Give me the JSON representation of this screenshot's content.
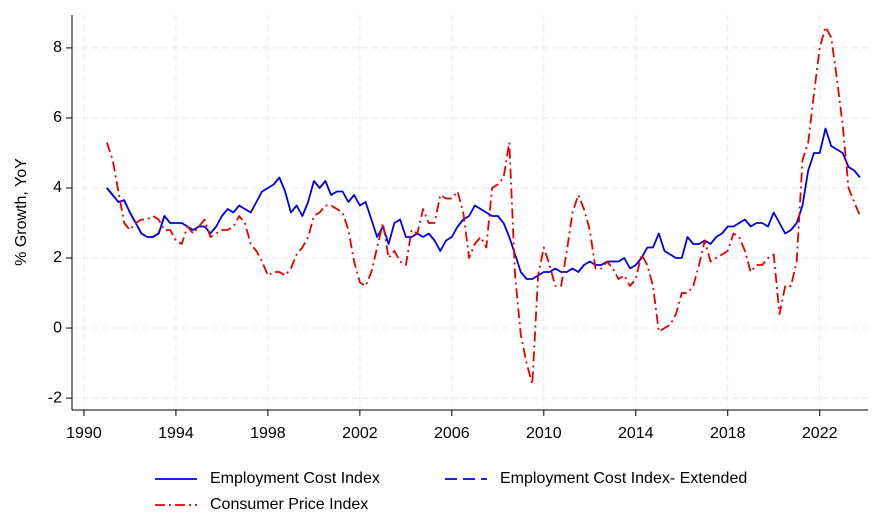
{
  "chart_data": {
    "type": "line",
    "y_label": "% Growth, YoY",
    "x": [
      1991,
      1991.25,
      1991.5,
      1991.75,
      1992,
      1992.25,
      1992.5,
      1992.75,
      1993,
      1993.25,
      1993.5,
      1993.75,
      1994,
      1994.25,
      1994.5,
      1994.75,
      1995,
      1995.25,
      1995.5,
      1995.75,
      1996,
      1996.25,
      1996.5,
      1996.75,
      1997,
      1997.25,
      1997.5,
      1997.75,
      1998,
      1998.25,
      1998.5,
      1998.75,
      1999,
      1999.25,
      1999.5,
      1999.75,
      2000,
      2000.25,
      2000.5,
      2000.75,
      2001,
      2001.25,
      2001.5,
      2001.75,
      2002,
      2002.25,
      2002.5,
      2002.75,
      2003,
      2003.25,
      2003.5,
      2003.75,
      2004,
      2004.25,
      2004.5,
      2004.75,
      2005,
      2005.25,
      2005.5,
      2005.75,
      2006,
      2006.25,
      2006.5,
      2006.75,
      2007,
      2007.25,
      2007.5,
      2007.75,
      2008,
      2008.25,
      2008.5,
      2008.75,
      2009,
      2009.25,
      2009.5,
      2009.75,
      2010,
      2010.25,
      2010.5,
      2010.75,
      2011,
      2011.25,
      2011.5,
      2011.75,
      2012,
      2012.25,
      2012.5,
      2012.75,
      2013,
      2013.25,
      2013.5,
      2013.75,
      2014,
      2014.25,
      2014.5,
      2014.75,
      2015,
      2015.25,
      2015.5,
      2015.75,
      2016,
      2016.25,
      2016.5,
      2016.75,
      2017,
      2017.25,
      2017.5,
      2017.75,
      2018,
      2018.25,
      2018.5,
      2018.75,
      2019,
      2019.25,
      2019.5,
      2019.75,
      2020,
      2020.25,
      2020.5,
      2020.75,
      2021,
      2021.25,
      2021.5,
      2021.75,
      2022,
      2022.25,
      2022.5,
      2022.75,
      2023,
      2023.25,
      2023.5,
      2023.75
    ],
    "series": [
      {
        "name": "Employment Cost Index",
        "color": "#0000e6",
        "dash": "none",
        "values": [
          4.0,
          3.8,
          3.6,
          3.65,
          3.3,
          3.0,
          2.7,
          2.6,
          2.6,
          2.7,
          3.2,
          3.0,
          3.0,
          3.0,
          2.9,
          2.8,
          2.9,
          2.9,
          2.7,
          2.9,
          3.2,
          3.4,
          3.3,
          3.5,
          3.4,
          3.3,
          3.6,
          3.9,
          4.0,
          4.1,
          4.3,
          3.9,
          3.3,
          3.5,
          3.2,
          3.6,
          4.2,
          4.0,
          4.2,
          3.8,
          3.9,
          3.9,
          3.6,
          3.8,
          3.5,
          3.6,
          3.1,
          2.6,
          2.9,
          2.4,
          3.0,
          3.1,
          2.6,
          2.6,
          2.7,
          2.6,
          2.7,
          2.5,
          2.2,
          2.5,
          2.6,
          2.9,
          3.1,
          3.2,
          3.5,
          3.4,
          3.3,
          3.2,
          3.2,
          3.0,
          2.6,
          2.1,
          1.6,
          1.4,
          1.4,
          1.5,
          1.6,
          1.6,
          1.7,
          1.6,
          1.6,
          1.7,
          1.6,
          1.8,
          1.9,
          1.8,
          1.8,
          1.9,
          1.9,
          1.9,
          2.0,
          1.7,
          1.8,
          2.0,
          2.3,
          2.3,
          2.7,
          2.2,
          2.1,
          2.0,
          2.0,
          2.6,
          2.4,
          2.4,
          2.5,
          2.4,
          2.6,
          2.7,
          2.9,
          2.9,
          3.0,
          3.1,
          2.9,
          3.0,
          3.0,
          2.9,
          3.3,
          3.0,
          2.7,
          2.8,
          3.0,
          3.5,
          4.5,
          5.0,
          5.0,
          5.7,
          5.2,
          5.1,
          5.0,
          4.6,
          4.5,
          4.3
        ]
      },
      {
        "name": "Employment Cost Index- Extended",
        "color": "#0000e6",
        "dash": "12,6",
        "x": [
          1991,
          1991.25,
          1991.5,
          1991.75,
          1992,
          1992.25,
          1992.5,
          1992.75,
          1993,
          1993.25,
          1993.5,
          1993.75
        ],
        "values": [
          4.0,
          3.8,
          3.6,
          3.65,
          3.3,
          3.0,
          2.7,
          2.6,
          2.6,
          2.7,
          3.2,
          3.0
        ]
      },
      {
        "name": "Consumer Price Index",
        "color": "#e60000",
        "dash": "10,4,2,4",
        "values": [
          5.3,
          4.8,
          3.9,
          3.0,
          2.8,
          3.0,
          3.1,
          3.1,
          3.2,
          3.1,
          2.8,
          2.8,
          2.5,
          2.4,
          2.9,
          2.7,
          2.9,
          3.1,
          2.6,
          2.7,
          2.8,
          2.8,
          2.9,
          3.2,
          3.0,
          2.4,
          2.2,
          1.9,
          1.5,
          1.6,
          1.6,
          1.5,
          1.7,
          2.1,
          2.3,
          2.6,
          3.2,
          3.3,
          3.5,
          3.5,
          3.4,
          3.3,
          2.8,
          1.9,
          1.3,
          1.2,
          1.6,
          2.3,
          3.0,
          2.0,
          2.2,
          1.9,
          1.8,
          2.8,
          2.7,
          3.4,
          3.0,
          3.0,
          3.8,
          3.7,
          3.7,
          3.9,
          3.3,
          2.0,
          2.4,
          2.6,
          2.3,
          4.0,
          4.1,
          4.3,
          5.3,
          1.5,
          -0.2,
          -1.0,
          -1.6,
          1.5,
          2.3,
          1.8,
          1.2,
          1.2,
          2.2,
          3.3,
          3.8,
          3.4,
          2.8,
          1.7,
          1.7,
          1.9,
          1.7,
          1.4,
          1.5,
          1.2,
          1.4,
          2.1,
          1.8,
          1.2,
          -0.1,
          0.0,
          0.1,
          0.4,
          1.0,
          1.0,
          1.2,
          1.8,
          2.5,
          1.9,
          2.0,
          2.1,
          2.2,
          2.7,
          2.6,
          2.2,
          1.6,
          1.8,
          1.8,
          2.0,
          2.1,
          0.4,
          1.2,
          1.2,
          1.9,
          4.8,
          5.3,
          6.7,
          8.0,
          8.6,
          8.3,
          7.1,
          5.8,
          4.0,
          3.6,
          3.2
        ]
      }
    ],
    "xlim": [
      1989.48,
      2024.1
    ],
    "xticks": [
      1990,
      1994,
      1998,
      2002,
      2006,
      2010,
      2014,
      2018,
      2022
    ],
    "ylim": [
      -2.34,
      8.94
    ],
    "yticks": [
      -2,
      0,
      2,
      4,
      6,
      8
    ],
    "grid": true,
    "legend": "bottom"
  }
}
